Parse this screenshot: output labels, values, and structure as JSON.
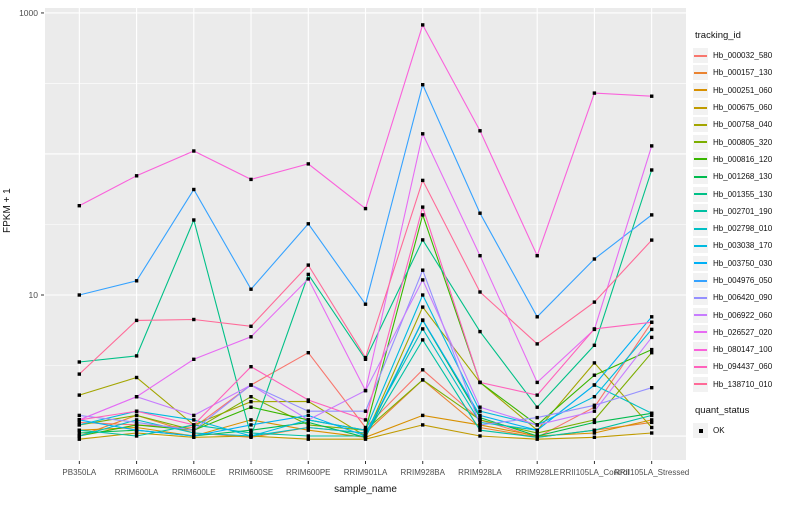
{
  "chart_data": {
    "type": "line",
    "title": "",
    "xlabel": "sample_name",
    "ylabel": "FPKM + 1",
    "y_scale": "log10",
    "ylim": [
      0.676,
      1084
    ],
    "grid": true,
    "legend_position": "right",
    "y_ticks": [
      {
        "label": "10",
        "value": 10
      },
      {
        "label": "1000",
        "value": 1000
      }
    ],
    "y_major_gridlines": [
      1,
      10,
      100,
      1000
    ],
    "y_minor_gridlines": [
      3.162,
      31.62,
      316.2
    ],
    "categories": [
      "PB350LA",
      "RRIM600LA",
      "RRIM600LE",
      "RRIM600SE",
      "RRIM600PE",
      "RRIM901LA",
      "RRIM928BA",
      "RRIM928LA",
      "RRIM928LE",
      "RRII105LA_Control",
      "RRII105LA_Stressed"
    ],
    "series": [
      {
        "name": "Hb_000032_580",
        "color": "#F8766D",
        "values_fpkm_plus_1": [
          1.25,
          1.2,
          1.15,
          2.3,
          3.9,
          1.15,
          2.95,
          1.3,
          0.98,
          1.6,
          6.4
        ]
      },
      {
        "name": "Hb_000157_130",
        "color": "#EA8331",
        "values_fpkm_plus_1": [
          1.0,
          1.4,
          1.05,
          0.98,
          1.15,
          1.05,
          2.5,
          1.15,
          0.98,
          1.1,
          1.25
        ]
      },
      {
        "name": "Hb_000251_060",
        "color": "#D89000",
        "values_fpkm_plus_1": [
          1.1,
          1.15,
          1.0,
          1.3,
          1.1,
          0.98,
          1.4,
          1.2,
          1.0,
          1.05,
          1.3
        ]
      },
      {
        "name": "Hb_000675_060",
        "color": "#C09B00",
        "values_fpkm_plus_1": [
          0.95,
          1.05,
          0.98,
          1.0,
          0.95,
          0.95,
          1.2,
          1.0,
          0.95,
          0.98,
          1.05
        ]
      },
      {
        "name": "Hb_000758_040",
        "color": "#A3A500",
        "values_fpkm_plus_1": [
          1.95,
          2.6,
          1.2,
          1.75,
          1.76,
          1.0,
          8.2,
          2.4,
          1.1,
          3.3,
          1.15
        ]
      },
      {
        "name": "Hb_000805_320",
        "color": "#7CAE00",
        "values_fpkm_plus_1": [
          1.2,
          1.4,
          1.1,
          1.9,
          1.2,
          1.1,
          2.5,
          1.3,
          1.05,
          1.3,
          3.9
        ]
      },
      {
        "name": "Hb_000816_120",
        "color": "#39B600",
        "values_fpkm_plus_1": [
          1.0,
          1.2,
          1.1,
          1.6,
          1.3,
          1.1,
          37,
          2.4,
          1.2,
          2.7,
          4.1
        ]
      },
      {
        "name": "Hb_001268_130",
        "color": "#00BB4E",
        "values_fpkm_plus_1": [
          1.05,
          1.1,
          1.0,
          1.1,
          1.25,
          0.98,
          6.6,
          1.35,
          1.0,
          1.25,
          1.45
        ]
      },
      {
        "name": "Hb_001355_130",
        "color": "#00C087",
        "values_fpkm_plus_1": [
          3.35,
          3.7,
          34,
          1.0,
          14,
          3.5,
          24.6,
          5.5,
          1.6,
          4.4,
          77
        ]
      },
      {
        "name": "Hb_002701_190",
        "color": "#00C1A3",
        "values_fpkm_plus_1": [
          1.1,
          1.0,
          1.2,
          1.05,
          1.0,
          1.0,
          4.8,
          1.1,
          0.98,
          1.1,
          1.4
        ]
      },
      {
        "name": "Hb_002798_010",
        "color": "#00BFC4",
        "values_fpkm_plus_1": [
          1.0,
          1.3,
          1.05,
          1.0,
          1.15,
          1.05,
          5.75,
          1.25,
          1.1,
          2.3,
          1.45
        ]
      },
      {
        "name": "Hb_003038_170",
        "color": "#00BAE0",
        "values_fpkm_plus_1": [
          1.2,
          1.5,
          1.3,
          1.0,
          1.3,
          1.1,
          10,
          1.5,
          1.2,
          1.9,
          5.7
        ]
      },
      {
        "name": "Hb_003750_030",
        "color": "#00B0F6",
        "values_fpkm_plus_1": [
          1.3,
          1.1,
          1.0,
          1.2,
          1.4,
          1.0,
          6.65,
          1.4,
          1.1,
          2.3,
          7.0
        ]
      },
      {
        "name": "Hb_004976_050",
        "color": "#35A2FF",
        "values_fpkm_plus_1": [
          10,
          12.6,
          56,
          11,
          32,
          8.6,
          310,
          38,
          7.0,
          18,
          37
        ]
      },
      {
        "name": "Hb_006420_090",
        "color": "#9590FF",
        "values_fpkm_plus_1": [
          1.4,
          1.25,
          1.1,
          2.3,
          1.5,
          1.5,
          15,
          1.2,
          1.35,
          1.65,
          2.2
        ]
      },
      {
        "name": "Hb_006922_060",
        "color": "#C77CFF",
        "values_fpkm_plus_1": [
          1.3,
          1.9,
          1.4,
          2.3,
          1.3,
          2.1,
          12.8,
          1.6,
          1.2,
          1.5,
          5.0
        ]
      },
      {
        "name": "Hb_026527_020",
        "color": "#E76BF3",
        "values_fpkm_plus_1": [
          1.3,
          1.9,
          3.5,
          5.05,
          13,
          2.1,
          139,
          19,
          2.4,
          5.7,
          114
        ]
      },
      {
        "name": "Hb_080147_100",
        "color": "#FA62DB",
        "values_fpkm_plus_1": [
          43,
          70,
          105,
          66,
          85,
          41,
          822,
          146,
          19,
          270,
          257
        ]
      },
      {
        "name": "Hb_094437_060",
        "color": "#FF62BC",
        "values_fpkm_plus_1": [
          1.3,
          1.5,
          1.2,
          3.1,
          1.8,
          1.3,
          42,
          2.4,
          1.95,
          5.75,
          6.4
        ]
      },
      {
        "name": "Hb_138710_010",
        "color": "#FF6A98",
        "values_fpkm_plus_1": [
          2.75,
          6.6,
          6.7,
          6.0,
          16.3,
          3.6,
          65,
          10.5,
          4.5,
          8.9,
          24.5
        ]
      }
    ],
    "legend": {
      "title": "tracking_id",
      "quant_title": "quant_status",
      "quant_label": "OK"
    },
    "colors": {
      "panel_background": "#EBEBEB",
      "gridline": "#FFFFFF",
      "point_marker": "#000000",
      "axis_text": "#4D4D4D",
      "legend_key_background": "#F2F2F2"
    }
  }
}
